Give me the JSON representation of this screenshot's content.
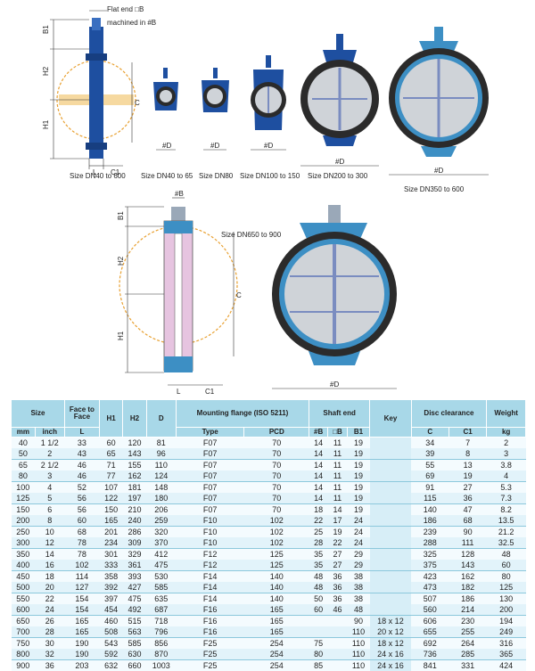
{
  "labels": {
    "flat_end": "Flat end □B",
    "machined_in": "machined in #B",
    "b1": "B1",
    "h2": "H2",
    "h1": "H1",
    "l": "L",
    "c1": "C1",
    "c": "C",
    "od": "#D",
    "ob": "#B"
  },
  "captions": {
    "dn40_600": "Size DN40 to 600",
    "dn40_65": "Size DN40 to 65",
    "dn80": "Size DN80",
    "dn100_150": "Size DN100 to 150",
    "dn200_300": "Size DN200 to 300",
    "dn350_600": "Size DN350 to 600",
    "dn650_900": "Size DN650 to 900"
  },
  "colors": {
    "blue": "#1e4fa0",
    "ring": "#3d8fc4",
    "grey": "#cfd3d8",
    "dark": "#2b2b2b",
    "orange": "#e8a030",
    "pink": "#e6c4e0",
    "header": "#a8d8e8"
  },
  "table": {
    "head1": {
      "size": "Size",
      "face": "Face to Face",
      "h1": "H1",
      "h2": "H2",
      "d": "D",
      "mounting": "Mounting flange (ISO 5211)",
      "shaft": "Shaft end",
      "key": "Key",
      "disc": "Disc clearance",
      "weight": "Weight"
    },
    "head2": [
      "mm",
      "inch",
      "L",
      "",
      "",
      "",
      "Type",
      "PCD",
      "#B",
      "□B",
      "B1",
      "",
      "C",
      "C1",
      "kg"
    ],
    "rows": [
      [
        "40",
        "1 1/2",
        "33",
        "60",
        "120",
        "81",
        "F07",
        "70",
        "14",
        "11",
        "19",
        "",
        "34",
        "7",
        "2"
      ],
      [
        "50",
        "2",
        "43",
        "65",
        "143",
        "96",
        "F07",
        "70",
        "14",
        "11",
        "19",
        "",
        "39",
        "8",
        "3"
      ],
      [
        "65",
        "2 1/2",
        "46",
        "71",
        "155",
        "110",
        "F07",
        "70",
        "14",
        "11",
        "19",
        "",
        "55",
        "13",
        "3.8"
      ],
      [
        "80",
        "3",
        "46",
        "77",
        "162",
        "124",
        "F07",
        "70",
        "14",
        "11",
        "19",
        "",
        "69",
        "19",
        "4"
      ],
      [
        "100",
        "4",
        "52",
        "107",
        "181",
        "148",
        "F07",
        "70",
        "14",
        "11",
        "19",
        "",
        "91",
        "27",
        "5.3"
      ],
      [
        "125",
        "5",
        "56",
        "122",
        "197",
        "180",
        "F07",
        "70",
        "14",
        "11",
        "19",
        "",
        "115",
        "36",
        "7.3"
      ],
      [
        "150",
        "6",
        "56",
        "150",
        "210",
        "206",
        "F07",
        "70",
        "18",
        "14",
        "19",
        "",
        "140",
        "47",
        "8.2"
      ],
      [
        "200",
        "8",
        "60",
        "165",
        "240",
        "259",
        "F10",
        "102",
        "22",
        "17",
        "24",
        "",
        "186",
        "68",
        "13.5"
      ],
      [
        "250",
        "10",
        "68",
        "201",
        "286",
        "320",
        "F10",
        "102",
        "25",
        "19",
        "24",
        "",
        "239",
        "90",
        "21.2"
      ],
      [
        "300",
        "12",
        "78",
        "234",
        "309",
        "370",
        "F10",
        "102",
        "28",
        "22",
        "24",
        "",
        "288",
        "111",
        "32.5"
      ],
      [
        "350",
        "14",
        "78",
        "301",
        "329",
        "412",
        "F12",
        "125",
        "35",
        "27",
        "29",
        "",
        "325",
        "128",
        "48"
      ],
      [
        "400",
        "16",
        "102",
        "333",
        "361",
        "475",
        "F12",
        "125",
        "35",
        "27",
        "29",
        "",
        "375",
        "143",
        "60"
      ],
      [
        "450",
        "18",
        "114",
        "358",
        "393",
        "530",
        "F14",
        "140",
        "48",
        "36",
        "38",
        "",
        "423",
        "162",
        "80"
      ],
      [
        "500",
        "20",
        "127",
        "392",
        "427",
        "585",
        "F14",
        "140",
        "48",
        "36",
        "38",
        "",
        "473",
        "182",
        "125"
      ],
      [
        "550",
        "22",
        "154",
        "397",
        "475",
        "635",
        "F14",
        "140",
        "50",
        "36",
        "38",
        "",
        "507",
        "186",
        "130"
      ],
      [
        "600",
        "24",
        "154",
        "454",
        "492",
        "687",
        "F16",
        "165",
        "60",
        "46",
        "48",
        "",
        "560",
        "214",
        "200"
      ],
      [
        "650",
        "26",
        "165",
        "460",
        "515",
        "718",
        "F16",
        "165",
        "",
        "",
        "90",
        "18 x 12",
        "606",
        "230",
        "194"
      ],
      [
        "700",
        "28",
        "165",
        "508",
        "563",
        "796",
        "F16",
        "165",
        "",
        "",
        "110",
        "20 x 12",
        "655",
        "255",
        "249"
      ],
      [
        "750",
        "30",
        "190",
        "543",
        "585",
        "856",
        "F25",
        "254",
        "75",
        "",
        "110",
        "18 x 12",
        "692",
        "264",
        "316"
      ],
      [
        "800",
        "32",
        "190",
        "592",
        "630",
        "870",
        "F25",
        "254",
        "80",
        "",
        "110",
        "24 x 16",
        "736",
        "285",
        "365"
      ],
      [
        "900",
        "36",
        "203",
        "632",
        "660",
        "1003",
        "F25",
        "254",
        "85",
        "",
        "110",
        "24 x 16",
        "841",
        "331",
        "424"
      ]
    ]
  }
}
